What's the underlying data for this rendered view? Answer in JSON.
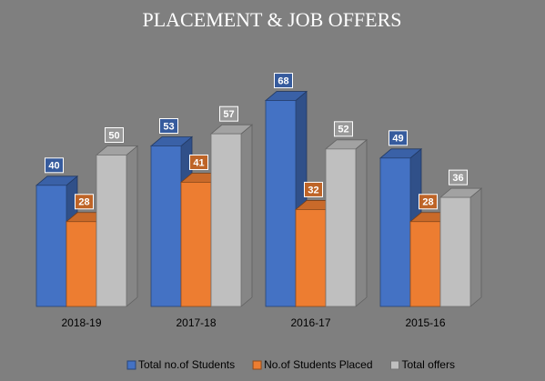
{
  "chart_data": {
    "type": "bar3d",
    "title": "PLACEMENT & JOB OFFERS",
    "categories": [
      "2018-19",
      "2017-18",
      "2016-17",
      "2015-16"
    ],
    "series": [
      {
        "name": "Total no.of Students",
        "color": "#4472c4",
        "values": [
          40,
          53,
          68,
          49
        ]
      },
      {
        "name": "No.of Students Placed",
        "color": "#ed7d31",
        "values": [
          28,
          41,
          32,
          28
        ]
      },
      {
        "name": "Total offers",
        "color": "#bfbfbf",
        "values": [
          50,
          57,
          52,
          36
        ]
      }
    ],
    "legend": "bottom"
  }
}
